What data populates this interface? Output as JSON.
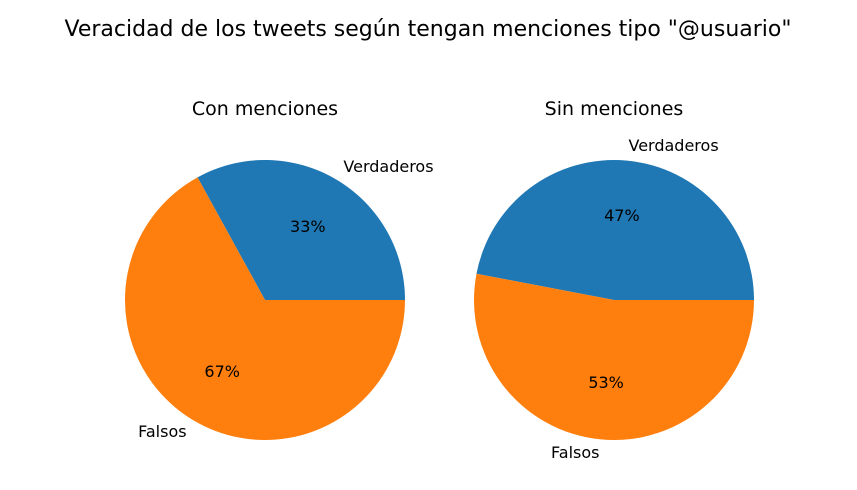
{
  "chart_data": {
    "type": "pie",
    "title": "Veracidad de los tweets según tengan menciones tipo \"@usuario\"",
    "colors": [
      "#1f77b4",
      "#ff7f0e"
    ],
    "legend": "none",
    "pies": [
      {
        "title": "Con menciones",
        "categories": [
          "Verdaderos",
          "Falsos"
        ],
        "values": [
          33,
          67
        ],
        "value_labels": [
          "33%",
          "67%"
        ]
      },
      {
        "title": "Sin menciones",
        "categories": [
          "Verdaderos",
          "Falsos"
        ],
        "values": [
          47,
          53
        ],
        "value_labels": [
          "47%",
          "53%"
        ]
      }
    ]
  }
}
